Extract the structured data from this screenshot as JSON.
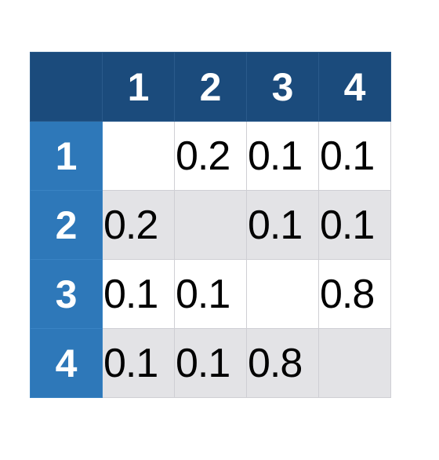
{
  "matrix": {
    "columns": [
      "1",
      "2",
      "3",
      "4"
    ],
    "rows": [
      {
        "label": "1",
        "cells": [
          "",
          "0.2",
          "0.1",
          "0.1"
        ]
      },
      {
        "label": "2",
        "cells": [
          "0.2",
          "",
          "0.1",
          "0.1"
        ]
      },
      {
        "label": "3",
        "cells": [
          "0.1",
          "0.1",
          "",
          "0.8"
        ]
      },
      {
        "label": "4",
        "cells": [
          "0.1",
          "0.1",
          "0.8",
          ""
        ]
      }
    ],
    "colors": {
      "header": "#1b4b7c",
      "row_header": "#2e78b9",
      "alt_row": "#e3e3e6"
    }
  }
}
